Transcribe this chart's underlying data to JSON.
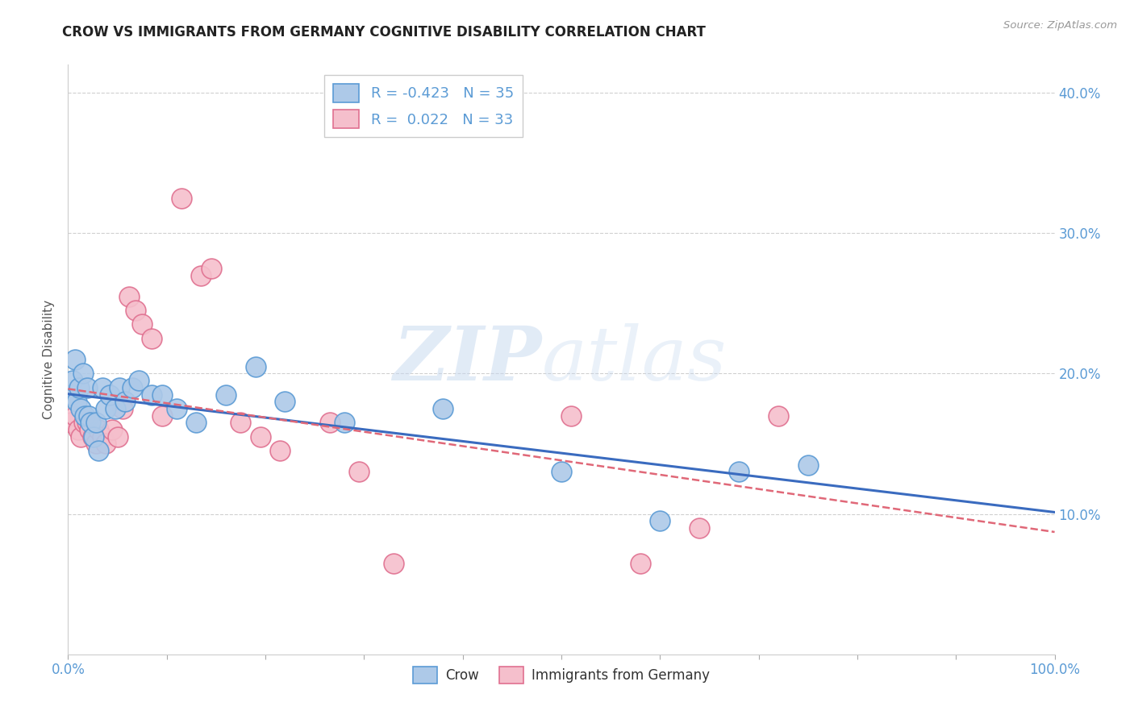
{
  "title": "CROW VS IMMIGRANTS FROM GERMANY COGNITIVE DISABILITY CORRELATION CHART",
  "source": "Source: ZipAtlas.com",
  "ylabel": "Cognitive Disability",
  "xlim": [
    0,
    1.0
  ],
  "ylim": [
    0.0,
    0.42
  ],
  "xticks": [
    0.0,
    0.1,
    0.2,
    0.3,
    0.4,
    0.5,
    0.6,
    0.7,
    0.8,
    0.9,
    1.0
  ],
  "yticks": [
    0.1,
    0.2,
    0.3,
    0.4
  ],
  "ytick_labels": [
    "10.0%",
    "20.0%",
    "30.0%",
    "40.0%"
  ],
  "xtick_labels": [
    "0.0%",
    "",
    "",
    "",
    "",
    "",
    "",
    "",
    "",
    "",
    "100.0%"
  ],
  "crow_color": "#adc9e8",
  "crow_edge_color": "#5b9bd5",
  "immgermany_color": "#f5bfcc",
  "immgermany_edge_color": "#e07090",
  "trendline_crow_color": "#3a6bbf",
  "trendline_imm_color": "#e06878",
  "tick_color": "#5b9bd5",
  "legend_r_crow": "-0.423",
  "legend_n_crow": "35",
  "legend_r_imm": "0.022",
  "legend_n_imm": "33",
  "crow_x": [
    0.003,
    0.005,
    0.007,
    0.009,
    0.011,
    0.013,
    0.015,
    0.017,
    0.019,
    0.021,
    0.023,
    0.026,
    0.028,
    0.031,
    0.035,
    0.038,
    0.042,
    0.048,
    0.052,
    0.058,
    0.065,
    0.072,
    0.085,
    0.095,
    0.11,
    0.13,
    0.16,
    0.19,
    0.22,
    0.28,
    0.38,
    0.5,
    0.6,
    0.68,
    0.75
  ],
  "crow_y": [
    0.185,
    0.195,
    0.21,
    0.18,
    0.19,
    0.175,
    0.2,
    0.17,
    0.19,
    0.17,
    0.165,
    0.155,
    0.165,
    0.145,
    0.19,
    0.175,
    0.185,
    0.175,
    0.19,
    0.18,
    0.19,
    0.195,
    0.185,
    0.185,
    0.175,
    0.165,
    0.185,
    0.205,
    0.18,
    0.165,
    0.175,
    0.13,
    0.095,
    0.13,
    0.135
  ],
  "imm_x": [
    0.003,
    0.007,
    0.01,
    0.013,
    0.016,
    0.019,
    0.022,
    0.025,
    0.028,
    0.031,
    0.035,
    0.038,
    0.045,
    0.05,
    0.055,
    0.062,
    0.068,
    0.075,
    0.085,
    0.095,
    0.115,
    0.135,
    0.145,
    0.175,
    0.195,
    0.215,
    0.265,
    0.295,
    0.33,
    0.51,
    0.58,
    0.64,
    0.72
  ],
  "imm_y": [
    0.165,
    0.17,
    0.16,
    0.155,
    0.165,
    0.165,
    0.16,
    0.155,
    0.15,
    0.16,
    0.155,
    0.15,
    0.16,
    0.155,
    0.175,
    0.255,
    0.245,
    0.235,
    0.225,
    0.17,
    0.325,
    0.27,
    0.275,
    0.165,
    0.155,
    0.145,
    0.165,
    0.13,
    0.065,
    0.17,
    0.065,
    0.09,
    0.17
  ],
  "watermark_zip": "ZIP",
  "watermark_atlas": "atlas",
  "background_color": "#ffffff",
  "grid_color": "#d0d0d0"
}
